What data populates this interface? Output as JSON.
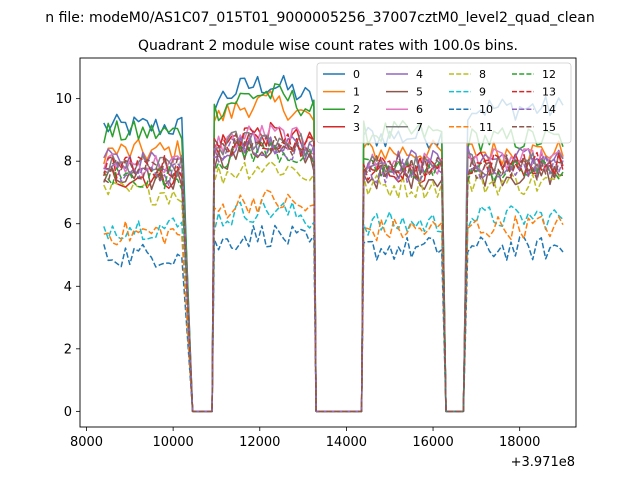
{
  "figure": {
    "suptitle": "n file: modeM0/AS1C07_015T01_9000005256_37007cztM0_level2_quad_clean",
    "title": "Quadrant 2 module wise count rates with 100.0s bins.",
    "x_offset_label": "+3.971e8"
  },
  "chart_data": {
    "type": "line",
    "title": "Quadrant 2 module wise count rates with 100.0s bins.",
    "xlabel": "",
    "ylabel": "",
    "x_offset": "+3.971e8",
    "xlim": [
      7850,
      19300
    ],
    "ylim": [
      -0.5,
      11.3
    ],
    "xticks": [
      8000,
      10000,
      12000,
      14000,
      16000,
      18000
    ],
    "xtick_labels": [
      "8000",
      "10000",
      "12000",
      "14000",
      "16000",
      "18000"
    ],
    "yticks": [
      0,
      2,
      4,
      6,
      8,
      10
    ],
    "ytick_labels": [
      "0",
      "2",
      "4",
      "6",
      "8",
      "10"
    ],
    "grid": false,
    "legend_position": "top-right",
    "legend_columns": 4,
    "segments_x": [
      [
        8400,
        10300
      ],
      [
        10950,
        13200
      ],
      [
        14400,
        16200
      ],
      [
        16800,
        19000
      ]
    ],
    "gaps_zero_x": [
      [
        10450,
        10900
      ],
      [
        13300,
        14350
      ],
      [
        16300,
        16700
      ]
    ],
    "series": [
      {
        "name": "0",
        "color": "#1f77b4",
        "style": "solid",
        "levels": [
          9.1,
          9.9,
          8.8,
          9.7
        ]
      },
      {
        "name": "1",
        "color": "#ff7f0e",
        "style": "solid",
        "levels": [
          8.3,
          9.3,
          8.3,
          8.3
        ]
      },
      {
        "name": "2",
        "color": "#2ca02c",
        "style": "solid",
        "levels": [
          8.9,
          9.6,
          8.9,
          8.7
        ]
      },
      {
        "name": "3",
        "color": "#d62728",
        "style": "solid",
        "levels": [
          7.5,
          8.5,
          7.7,
          7.9
        ]
      },
      {
        "name": "4",
        "color": "#9467bd",
        "style": "solid",
        "levels": [
          8.0,
          8.3,
          8.0,
          8.1
        ]
      },
      {
        "name": "5",
        "color": "#8c564b",
        "style": "solid",
        "levels": [
          7.4,
          8.0,
          7.5,
          7.6
        ]
      },
      {
        "name": "6",
        "color": "#e377c2",
        "style": "solid",
        "levels": [
          7.9,
          8.5,
          7.9,
          8.0
        ]
      },
      {
        "name": "7",
        "color": "#7f7f7f",
        "style": "solid",
        "levels": [
          7.8,
          8.4,
          7.8,
          7.9
        ]
      },
      {
        "name": "8",
        "color": "#bcbd22",
        "style": "dashed",
        "levels": [
          7.0,
          7.5,
          7.2,
          7.3
        ]
      },
      {
        "name": "9",
        "color": "#17becf",
        "style": "dashed",
        "levels": [
          5.9,
          6.1,
          6.0,
          6.2
        ]
      },
      {
        "name": "10",
        "color": "#1f77b4",
        "style": "dashed",
        "levels": [
          5.0,
          5.3,
          5.2,
          5.2
        ]
      },
      {
        "name": "11",
        "color": "#ff7f0e",
        "style": "dashed",
        "levels": [
          5.7,
          6.4,
          5.8,
          5.9
        ]
      },
      {
        "name": "12",
        "color": "#2ca02c",
        "style": "dashed",
        "levels": [
          7.5,
          8.0,
          7.7,
          7.7
        ]
      },
      {
        "name": "13",
        "color": "#d62728",
        "style": "dashed",
        "levels": [
          7.8,
          8.4,
          7.8,
          7.9
        ]
      },
      {
        "name": "14",
        "color": "#9467bd",
        "style": "dashed",
        "levels": [
          7.6,
          8.2,
          7.7,
          7.8
        ]
      },
      {
        "name": "15",
        "color": "#8c564b",
        "style": "dashed",
        "levels": [
          7.7,
          8.3,
          7.8,
          7.8
        ]
      }
    ]
  }
}
